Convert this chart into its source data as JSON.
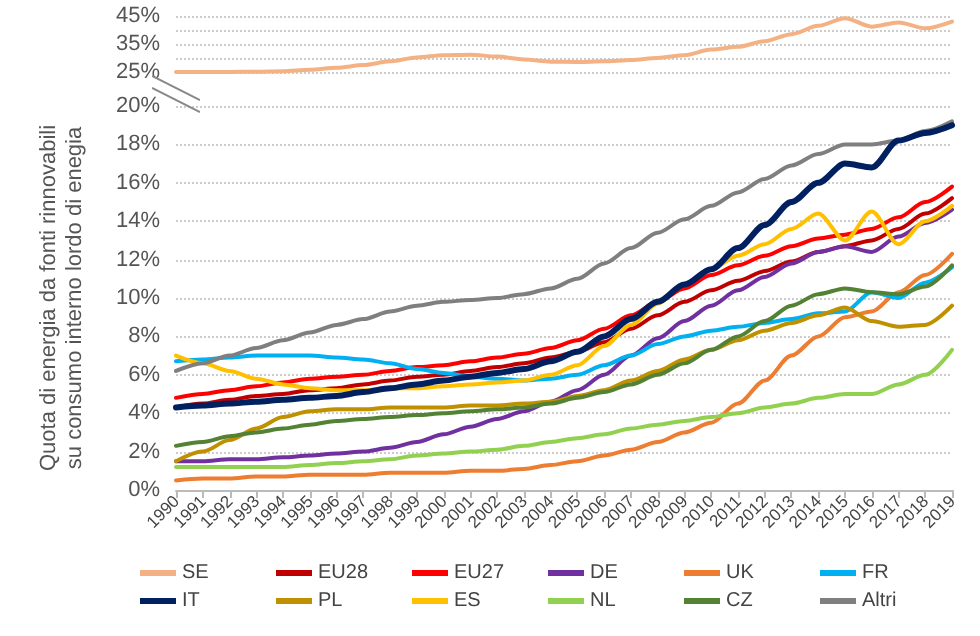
{
  "chart_data": [
    {
      "type": "line",
      "categories": [
        null,
        null,
        null,
        null,
        null,
        null,
        null,
        null,
        null,
        null,
        null,
        null,
        null,
        null,
        null,
        null,
        null,
        null,
        null,
        null,
        null,
        null,
        null,
        null,
        null,
        null,
        null,
        null,
        null,
        null
      ],
      "series": [
        {
          "name": "SE",
          "color": "#f4b183",
          "values": [
            25.0,
            25.0,
            25.0,
            25.1,
            25.3,
            25.8,
            26.5,
            27.5,
            28.8,
            30.2,
            31.0,
            31.2,
            30.5,
            29.5,
            28.7,
            28.6,
            28.8,
            29.3,
            30.0,
            31.0,
            33.0,
            34.0,
            36.0,
            38.5,
            41.5,
            44.2,
            41.2,
            42.7,
            40.6,
            43.0
          ]
        }
      ],
      "ylim": [
        25,
        45
      ],
      "yticks": [
        {
          "value": 25,
          "label": "25%"
        },
        {
          "value": 30,
          "label": null
        },
        {
          "value": 35,
          "label": "35%"
        },
        {
          "value": 40,
          "label": null
        },
        {
          "value": 45,
          "label": "45%"
        }
      ],
      "tick_labels": "y",
      "grid": "y",
      "legend": "bottom",
      "marker": "none",
      "line_style": "solid"
    },
    {
      "type": "line",
      "ylabel": "Quota di energia da fonti rinnovabili\nsu consumo interno lordo di enegia",
      "categories": [
        "1990",
        "1991",
        "1992",
        "1993",
        "1994",
        "1995",
        "1996",
        "1997",
        "1998",
        "1999",
        "2000",
        "2001",
        "2002",
        "2003",
        "2004",
        "2005",
        "2006",
        "2007",
        "2008",
        "2009",
        "2010",
        "2011",
        "2012",
        "2013",
        "2014",
        "2015",
        "2016",
        "2017",
        "2018",
        "2019"
      ],
      "series": [
        {
          "name": "EU28",
          "color": "#c00000",
          "values": [
            4.3,
            4.5,
            4.7,
            4.9,
            5.0,
            5.2,
            5.3,
            5.5,
            5.7,
            5.9,
            6.0,
            6.2,
            6.4,
            6.6,
            6.9,
            7.2,
            7.7,
            8.4,
            9.1,
            9.8,
            10.4,
            10.9,
            11.4,
            11.9,
            12.4,
            12.7,
            13.0,
            13.6,
            14.4,
            15.2
          ]
        },
        {
          "name": "EU27",
          "color": "#ff0000",
          "values": [
            4.8,
            5.0,
            5.2,
            5.4,
            5.6,
            5.8,
            5.9,
            6.0,
            6.2,
            6.4,
            6.5,
            6.7,
            6.9,
            7.1,
            7.4,
            7.8,
            8.4,
            9.1,
            9.8,
            10.5,
            11.2,
            11.7,
            12.2,
            12.7,
            13.1,
            13.3,
            13.6,
            14.2,
            15.0,
            15.8
          ]
        },
        {
          "name": "DE",
          "color": "#7030a0",
          "values": [
            1.5,
            1.5,
            1.6,
            1.6,
            1.7,
            1.8,
            1.9,
            2.0,
            2.2,
            2.5,
            2.9,
            3.3,
            3.7,
            4.1,
            4.6,
            5.2,
            6.0,
            7.0,
            7.9,
            8.8,
            9.6,
            10.4,
            11.1,
            11.8,
            12.4,
            12.7,
            12.4,
            13.2,
            13.9,
            14.6
          ]
        },
        {
          "name": "UK",
          "color": "#ed7d31",
          "values": [
            0.5,
            0.6,
            0.6,
            0.7,
            0.7,
            0.8,
            0.8,
            0.8,
            0.9,
            0.9,
            0.9,
            1.0,
            1.0,
            1.1,
            1.3,
            1.5,
            1.8,
            2.1,
            2.5,
            3.0,
            3.5,
            4.5,
            5.7,
            7.0,
            8.0,
            9.0,
            9.3,
            10.3,
            11.2,
            12.3
          ]
        },
        {
          "name": "FR",
          "color": "#00b0f0",
          "values": [
            6.7,
            6.8,
            6.9,
            7.0,
            7.0,
            7.0,
            6.9,
            6.8,
            6.6,
            6.3,
            6.1,
            5.9,
            5.8,
            5.7,
            5.8,
            6.0,
            6.5,
            7.0,
            7.6,
            8.0,
            8.3,
            8.5,
            8.7,
            8.9,
            9.2,
            9.3,
            10.3,
            10.0,
            10.8,
            11.6
          ]
        },
        {
          "name": "IT",
          "color": "#002060",
          "values": [
            4.3,
            4.4,
            4.5,
            4.6,
            4.7,
            4.8,
            4.9,
            5.1,
            5.3,
            5.5,
            5.7,
            5.9,
            6.1,
            6.3,
            6.7,
            7.2,
            8.0,
            8.9,
            9.8,
            10.7,
            11.5,
            12.6,
            13.8,
            15.0,
            16.0,
            17.0,
            16.8,
            18.2,
            18.6,
            19.0
          ]
        },
        {
          "name": "PL",
          "color": "#bf9000",
          "values": [
            1.5,
            2.0,
            2.6,
            3.2,
            3.8,
            4.1,
            4.2,
            4.2,
            4.3,
            4.3,
            4.3,
            4.4,
            4.4,
            4.5,
            4.6,
            4.9,
            5.2,
            5.7,
            6.2,
            6.8,
            7.3,
            7.8,
            8.3,
            8.7,
            9.1,
            9.5,
            8.8,
            8.5,
            8.6,
            9.6
          ]
        },
        {
          "name": "ES",
          "color": "#ffc000",
          "values": [
            7.0,
            6.6,
            6.2,
            5.8,
            5.5,
            5.3,
            5.2,
            5.2,
            5.3,
            5.3,
            5.4,
            5.5,
            5.6,
            5.7,
            6.0,
            6.5,
            7.5,
            8.6,
            9.7,
            10.7,
            11.5,
            12.2,
            12.8,
            13.6,
            14.4,
            13.0,
            14.5,
            12.8,
            14.0,
            14.8
          ]
        },
        {
          "name": "NL",
          "color": "#92d050",
          "values": [
            1.2,
            1.2,
            1.2,
            1.2,
            1.2,
            1.3,
            1.4,
            1.5,
            1.6,
            1.8,
            1.9,
            2.0,
            2.1,
            2.3,
            2.5,
            2.7,
            2.9,
            3.2,
            3.4,
            3.6,
            3.8,
            4.0,
            4.3,
            4.5,
            4.8,
            5.0,
            5.0,
            5.5,
            6.0,
            7.3
          ]
        },
        {
          "name": "CZ",
          "color": "#548235",
          "values": [
            2.3,
            2.5,
            2.8,
            3.0,
            3.2,
            3.4,
            3.6,
            3.7,
            3.8,
            3.9,
            4.0,
            4.1,
            4.2,
            4.3,
            4.5,
            4.8,
            5.1,
            5.5,
            6.0,
            6.6,
            7.3,
            8.0,
            8.8,
            9.6,
            10.2,
            10.5,
            10.3,
            10.2,
            10.6,
            11.7
          ]
        },
        {
          "name": "Altri",
          "color": "#7f7f7f",
          "values": [
            6.2,
            6.6,
            7.0,
            7.4,
            7.8,
            8.2,
            8.6,
            8.9,
            9.3,
            9.6,
            9.8,
            9.9,
            10.0,
            10.2,
            10.5,
            11.0,
            11.8,
            12.6,
            13.4,
            14.1,
            14.8,
            15.5,
            16.2,
            16.9,
            17.5,
            18.0,
            18.0,
            18.2,
            18.7,
            19.2
          ]
        }
      ],
      "ylim": [
        0,
        20
      ],
      "yticks": [
        {
          "value": 0,
          "label": "0%"
        },
        {
          "value": 2,
          "label": "2%"
        },
        {
          "value": 4,
          "label": "4%"
        },
        {
          "value": 6,
          "label": "6%"
        },
        {
          "value": 8,
          "label": "8%"
        },
        {
          "value": 10,
          "label": "10%"
        },
        {
          "value": 12,
          "label": "12%"
        },
        {
          "value": 14,
          "label": "14%"
        },
        {
          "value": 16,
          "label": "16%"
        },
        {
          "value": 18,
          "label": "18%"
        },
        {
          "value": 20,
          "label": "20%"
        }
      ],
      "grid": "y",
      "legend": "bottom",
      "marker": "none",
      "line_style": "solid"
    }
  ]
}
